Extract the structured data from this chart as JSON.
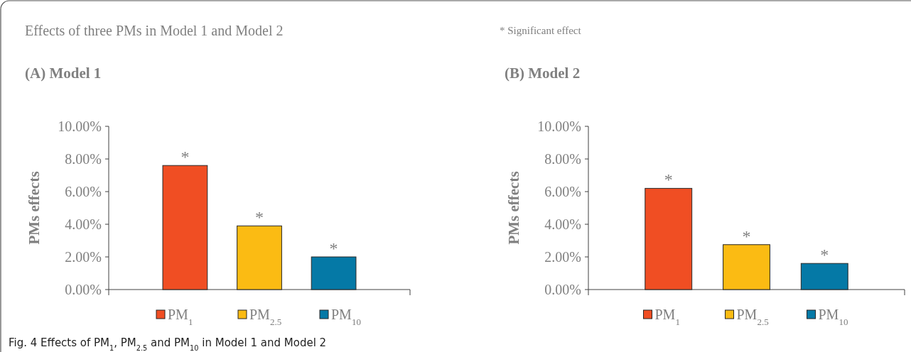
{
  "chart_data": [
    {
      "type": "bar",
      "title": "(A) Model 1",
      "ylabel": "PMs effects",
      "categories": [
        null
      ],
      "series": [
        {
          "name": "PM$_{1}$",
          "color": "#f04e23",
          "values": [
            7.6
          ],
          "value_labels": [
            "*"
          ]
        },
        {
          "name": "PM$_{2.5}$",
          "color": "#fbbb13",
          "values": [
            3.9
          ],
          "value_labels": [
            "*"
          ]
        },
        {
          "name": "PM$_{10}$",
          "color": "#0579a6",
          "values": [
            2.0
          ],
          "value_labels": [
            "*"
          ]
        }
      ],
      "ylim": [
        0,
        10
      ],
      "yticks": [
        {
          "value": 0,
          "label": "0.00%"
        },
        {
          "value": 2,
          "label": "2.00%"
        },
        {
          "value": 4,
          "label": "4.00%"
        },
        {
          "value": 6,
          "label": "6.00%"
        },
        {
          "value": 8,
          "label": "8.00%"
        },
        {
          "value": 10,
          "label": "10.00%"
        }
      ],
      "legend": "bottom",
      "grid": false,
      "annotations": [
        "Effects of three PMs in Model 1 and Model 2",
        "* Significant effect",
        "Fig. 4  Effects of PM$_{1}$, PM$_{2.5}$ and PM$_{10}$ in Model 1 and Model 2"
      ]
    },
    {
      "type": "bar",
      "title": "(B) Model 2",
      "ylabel": "PMs effects",
      "categories": [
        null
      ],
      "series": [
        {
          "name": "PM$_{1}$",
          "color": "#f04e23",
          "values": [
            6.2
          ],
          "value_labels": [
            "*"
          ]
        },
        {
          "name": "PM$_{2.5}$",
          "color": "#fbbb13",
          "values": [
            2.75
          ],
          "value_labels": [
            "*"
          ]
        },
        {
          "name": "PM$_{10}$",
          "color": "#0579a6",
          "values": [
            1.6
          ],
          "value_labels": [
            "*"
          ]
        }
      ],
      "ylim": [
        0,
        10
      ],
      "yticks": [
        {
          "value": 0,
          "label": "0.00%"
        },
        {
          "value": 2,
          "label": "2.00%"
        },
        {
          "value": 4,
          "label": "4.00%"
        },
        {
          "value": 6,
          "label": "6.00%"
        },
        {
          "value": 8,
          "label": "8.00%"
        },
        {
          "value": 10,
          "label": "10.00%"
        }
      ],
      "legend": "bottom",
      "grid": false
    }
  ]
}
